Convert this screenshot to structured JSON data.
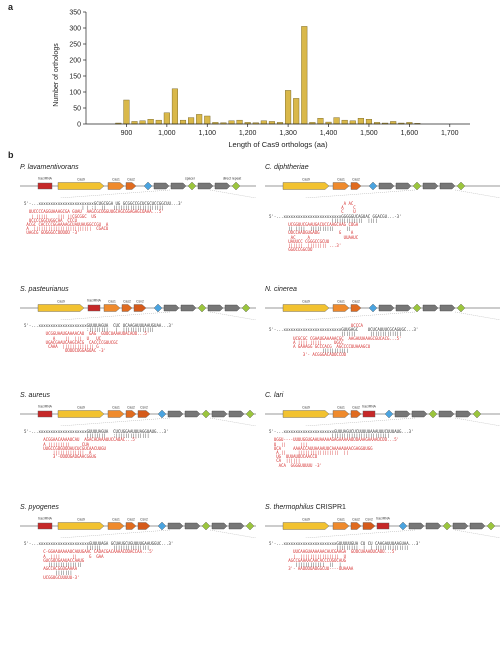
{
  "panel_a_label": "a",
  "panel_b_label": "b",
  "chart_data": {
    "type": "bar",
    "xlabel": "Length of Cas9 orthologs (aa)",
    "ylabel": "Number of orthologs",
    "xlim": [
      800,
      1750
    ],
    "ylim": [
      0,
      350
    ],
    "yticks": [
      0,
      50,
      100,
      150,
      200,
      250,
      300,
      350
    ],
    "xticks": [
      900,
      1000,
      1100,
      1200,
      1300,
      1400,
      1500,
      1600,
      1700
    ],
    "xtick_labels": [
      "900",
      "1,000",
      "1,100",
      "1,200",
      "1,300",
      "1,400",
      "1,500",
      "1,600",
      "1,700"
    ],
    "bar_color": "#d9b84a",
    "x": [
      880,
      900,
      920,
      940,
      960,
      980,
      1000,
      1020,
      1040,
      1060,
      1080,
      1100,
      1120,
      1140,
      1160,
      1180,
      1200,
      1220,
      1240,
      1260,
      1280,
      1300,
      1320,
      1340,
      1360,
      1380,
      1400,
      1420,
      1440,
      1460,
      1480,
      1500,
      1520,
      1540,
      1560,
      1580,
      1600,
      1620
    ],
    "values": [
      3,
      75,
      8,
      10,
      15,
      12,
      35,
      110,
      12,
      20,
      30,
      25,
      5,
      4,
      10,
      12,
      5,
      4,
      10,
      8,
      5,
      105,
      80,
      305,
      5,
      18,
      6,
      20,
      12,
      10,
      18,
      15,
      5,
      3,
      8,
      3,
      5,
      2
    ]
  },
  "orthologs": [
    {
      "organism": "P. lavamentivorans",
      "suffix": "",
      "labels": {
        "trac": "tracrRNA",
        "cas9": "Cas9",
        "cas1": "Cas1",
        "cas2": "Cas2",
        "spacer": "spacer",
        "repeat": "direct repeat"
      },
      "rna": [
        "5'-...xxxxxxxxxxxxxxxxxxxxxxxGCUGCGGA UG GCGGCCGCUCGCUCCGGCUU...3'",
        "                        | | :|  ||   |||||||||||||||||||||",
        "  UUCCCCAGGUAAAGCGA GUAU  AAGCGCUGGUUGCAGCGGAGAGCUAAA...5'",
        "   | |||||    ||| ||CGCGGC  US",
        "  UCCCCGGCUGGCAA  CCCU",
        " ACGC CACCCCGGAAAAGCUAUUAUGGCCGU  A",
        " A  ||||||||||||||||||||||||  CGACU",
        " UAGCG GUGGGCCUUUUU -3'"
      ]
    },
    {
      "organism": "C. diphtheriae",
      "suffix": "",
      "labels": {
        "cas9": "Cas9",
        "cas1": "Cas1",
        "cas2": "Cas2"
      },
      "rna": [
        "                               A AC",
        "                              A    C",
        "                              C    U",
        "5'-...xxxxxxxxxxxxxxxxxxxxxxxxGGGGGUCAGUAC GGACGU...-3'",
        "                          |||||||||||||  ||||",
        "        UCGGUUCGAAUGACUCCAAGCAAG CUGA",
        "        || ||||  ||||||||||     ||",
        "        UUCCAAUGUGAUG        G    A",
        "         AC     A              UUAAUC",
        "        UAUUCC CGGGCCGCUU",
        "        ||||||  |||||||| ...3'",
        "        GGUCCGGCUU"
      ]
    },
    {
      "organism": "S. pasteurianus",
      "suffix": "",
      "labels": {
        "cas9": "Cas9",
        "trac": "tracrRNA",
        "cas1": "Cas1",
        "cas2": "Cas2",
        "csn2": "Csn2"
      },
      "rna": [
        "5'-...xxxxxxxxxxxxxxxxxxxxGUUUUAGUA  CUC UCAAGAUUUAAUGUAA...3'",
        "                          :||||||||   |  |||||||||||||",
        "         UCGGUAAUGAAAACAU  GAG  GUUCUAAAUUACAUU...5'",
        "            A    ||  |||  U   UC",
        "         UGACGAAUCAAGCACG  CACCCCGUUCGC",
        "          CAAA  ||||||||||||| G",
        "                 UUUUCUGGAGUAC -3'"
      ]
    },
    {
      "organism": "N. cinerea",
      "suffix": "",
      "labels": {
        "cas9": "Cas9",
        "cas1": "Cas1",
        "cas2": "Cas2"
      },
      "rna": [
        "                                  UCCCA",
        "5'-...xxxxxxxxxxxxxxxxxxxxxxxxGUUGAGC    UCUCAUUUCGCAGUGC...3'",
        "                              ||||||      |||||||||||||",
        "          UCGCGC CGAAUGAAAAACGC  AAGAUUAAAGCGUCACG...5'",
        "          A |||| |||||     UGCC",
        "          A GAAAGG GCCCACG  AGCCCCUUAAAGCU",
        "                      |||||||||||",
        "              3'- ACGGGACAUUCCUU"
      ]
    },
    {
      "organism": "S. aureus",
      "suffix": "",
      "labels": {
        "trac": "tracrRNA",
        "cas9": "Cas9",
        "cas1": "Cas1",
        "cas2": "Cas2",
        "csn2": "Csn2"
      },
      "rna": [
        "5'-...xxxxxxxxxxxxxxxxxxxxGUUUUAGUA  CUCUGGAAUUUAGGUAUG...3'",
        "                          ||||||||   :||||||||||||||",
        "        ACGGAACAAAAUCAU  AGACAUAAAUUCCAUAC...5'",
        "        A |||||||||     CUA",
        "        UUGCCGUGUUUAUCUCGUCAACUUGU",
        "            |||||||||||||  A",
        "            3'-UUUUGAUGAACGGUG"
      ]
    },
    {
      "organism": "C. lari",
      "suffix": "",
      "labels": {
        "cas9": "Cas9",
        "cas1": "Cas1",
        "cas2": "Cas2",
        "trac": "tracrRNA"
      },
      "rna": [
        "5'-...xxxxxxxxxxxxxxxxxxxxxGUUUAGUCUCUUUUUAAAUUUCUUUAUG...3'",
        "                          ||||||||||||||||||||||||",
        "  UGGU----UUUUGGUGAAUAAAAAGAGAAAAAUUUAAAGAAAAUCUU...5'",
        "  U  ||      |||",
        "  UCA     AAAACCAUUAAAAUUCAAAAAUAACGAGGUUGG",
        "   A ||     |||||||||||||||||  ||",
        "   UG  UUUAUUUCAACCU",
        "   CA  ||||||",
        "    ACA  GGGGUUUUU -3'"
      ]
    },
    {
      "organism": "S. pyogenes",
      "suffix": "",
      "labels": {
        "trac": "tracrRNA",
        "cas9": "Cas9",
        "cas1": "Cas1",
        "cas2": "Cas2",
        "csn2": "Csn2"
      },
      "rna": [
        "5'-...xxxxxxxxxxxxxxxxxxxxxGUUUUAGA GCUAUGCUGUUUUGAAUGGUC...3'",
        "                          ||||||     |||||||||||||||",
        "        C-GGAAUAAAAUCAUUGAAC CAUACGACAAAACUUACCAA...5'",
        "        A  ||||     ||     G  GAA",
        "        GUCGUUGAAUACCAAUG",
        "          ||||||||||||||",
        "        AGCCACGGUGAAAA",
        "             |||||||",
        "        UCGGUGCUUUUU-3'"
      ]
    },
    {
      "organism": "S. thermophilus",
      "suffix": "CRISPR1",
      "labels": {
        "cas9": "Cas9",
        "cas1": "Cas1",
        "cas2": "Cas2",
        "csn2": "Csn2",
        "trac": "tracrRNA"
      },
      "rna": [
        "5'-...xxxxxxxxxxxxxxxxxxxxxxGUUUUUGUA CU CU CAAGAUUUAAGUAA...3'",
        "                            |||||||||  |  | ||||||||||||||",
        "          UUCAAGUAAAAAACAUCGAAGA  GUUCUAAAUUCAUU...5'",
        "          |  ||||||||||||||||  U",
        "        AGCCGAAAACAACACCCUGUCAUG",
        "           ||||||||||||  ||  |",
        "        3'- AAUUUUAUGGCUU----UUAAAA"
      ]
    }
  ]
}
